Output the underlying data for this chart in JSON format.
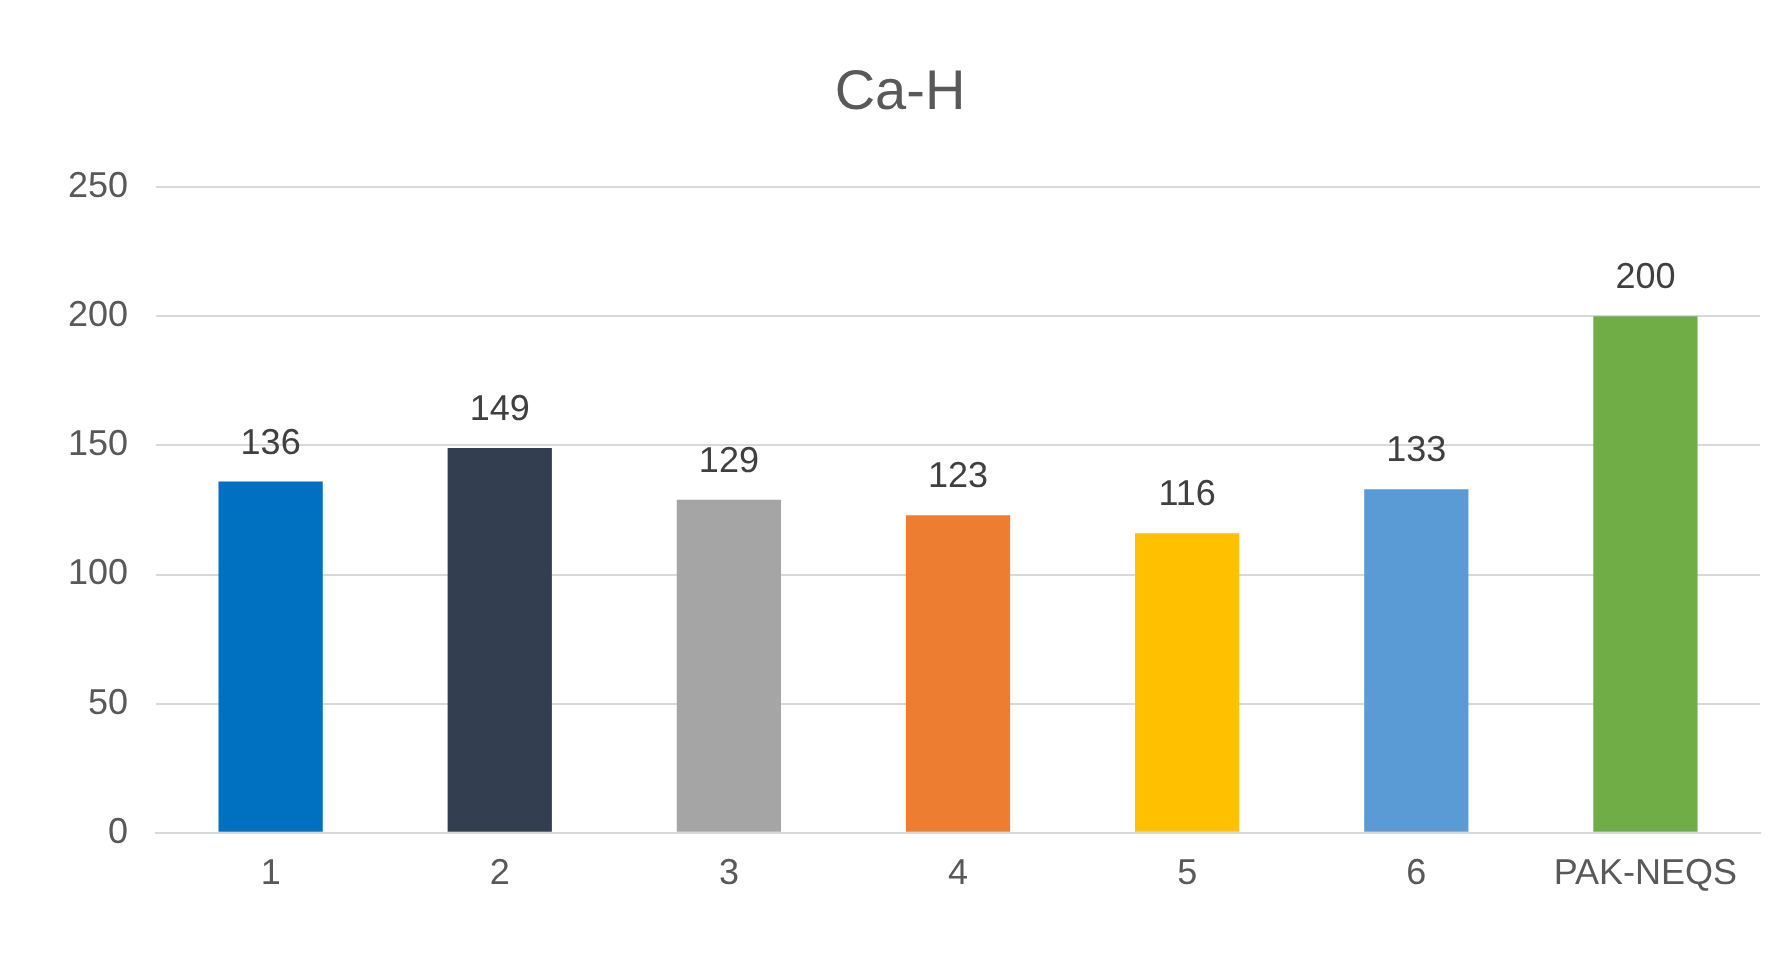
{
  "chart_data": {
    "type": "bar",
    "title": "Ca-H",
    "categories": [
      "1",
      "2",
      "3",
      "4",
      "5",
      "6",
      "PAK-NEQS"
    ],
    "values": [
      136,
      149,
      129,
      123,
      116,
      133,
      200
    ],
    "colors": [
      "#0070c0",
      "#333f50",
      "#a5a5a5",
      "#ed7d31",
      "#ffc000",
      "#5b9bd5",
      "#70ad47"
    ],
    "ylim": [
      0,
      250
    ],
    "yticks": [
      0,
      50,
      100,
      150,
      200,
      250
    ],
    "grid": "y",
    "data_labels": true
  }
}
